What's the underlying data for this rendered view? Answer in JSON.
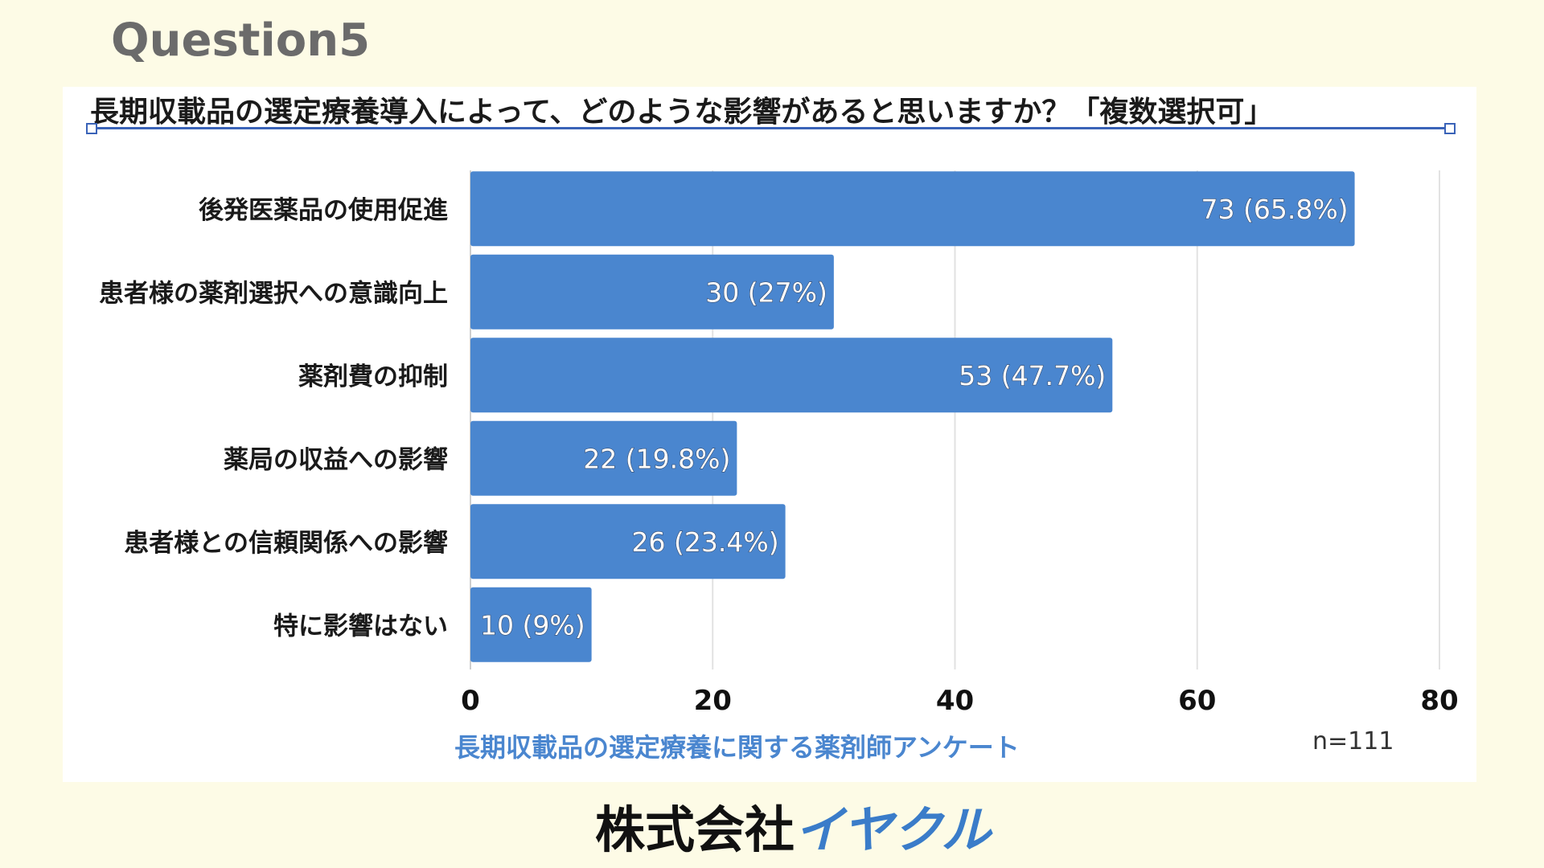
{
  "header": {
    "question": "Question5"
  },
  "chart_data": {
    "type": "bar",
    "orientation": "horizontal",
    "title": "長期収載品の選定療養導入によって、どのような影響があると思いますか？「複数選択可」",
    "categories": [
      "後発医薬品の使用促進",
      "患者様の薬剤選択への意識向上",
      "薬剤費の抑制",
      "薬局の収益への影響",
      "患者様との信頼関係への影響",
      "特に影響はない"
    ],
    "values": [
      73,
      30,
      53,
      22,
      26,
      10
    ],
    "data_labels": [
      "73 (65.8%)",
      "30 (27%)",
      "53 (47.7%)",
      "22 (19.8%)",
      "26 (23.4%)",
      "10 (9%)"
    ],
    "xlim": [
      0,
      80
    ],
    "xticks": [
      0,
      20,
      40,
      60,
      80
    ],
    "grid": true,
    "bar_color": "#4a86cf",
    "source_label": "長期収載品の選定療養に関する薬剤師アンケート",
    "n_label": "n=111"
  },
  "footer": {
    "company_black": "株式会社",
    "company_blue": "イヤクル"
  }
}
